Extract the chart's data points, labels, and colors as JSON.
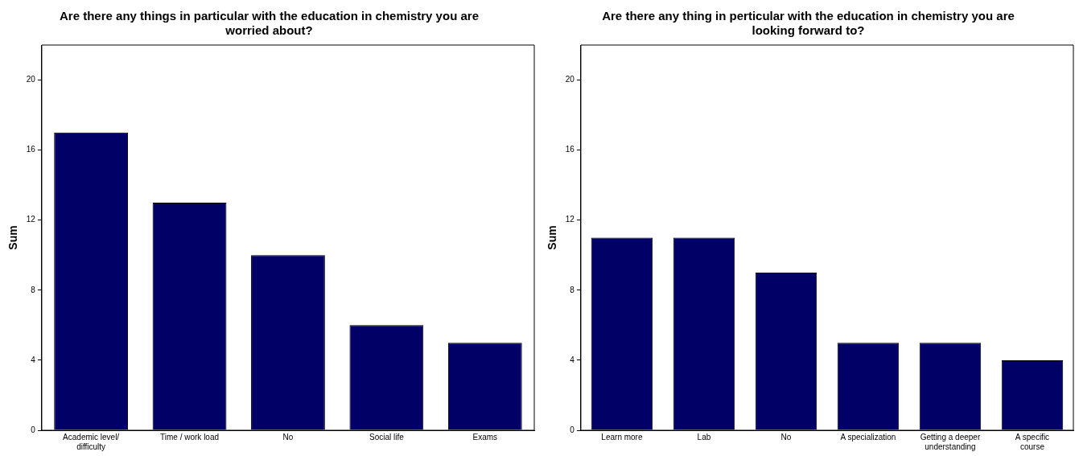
{
  "chart_data": [
    {
      "type": "bar",
      "title": "Are there any things in particular with the education in chemistry you are worried about?",
      "ylabel": "Sum",
      "categories": [
        "Academic level/ difficulty",
        "Time / work load",
        "No",
        "Social life",
        "Exams"
      ],
      "values": [
        17,
        13,
        10,
        6,
        5
      ],
      "color": "#000066",
      "ylim": [
        0,
        22
      ],
      "yticks": [
        0,
        4,
        8,
        12,
        16,
        20
      ],
      "grid": false,
      "legend": false
    },
    {
      "type": "bar",
      "title": "Are there any thing in perticular with the education in chemistry you are looking forward to?",
      "ylabel": "Sum",
      "categories": [
        "Learn more",
        "Lab",
        "No",
        "A specialization",
        "Getting a deeper understanding",
        "A specific course"
      ],
      "values": [
        11,
        11,
        9,
        5,
        5,
        4
      ],
      "color": "#000066",
      "ylim": [
        0,
        22
      ],
      "yticks": [
        0,
        4,
        8,
        12,
        16,
        20
      ],
      "grid": false,
      "legend": false
    }
  ]
}
